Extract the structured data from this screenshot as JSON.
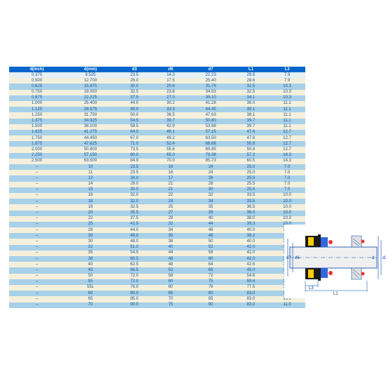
{
  "table": {
    "headers": [
      "d(inch)",
      "d(mm)",
      "d3",
      "d6",
      "d7",
      "L1",
      "L3"
    ],
    "header_bg": "#0066cc",
    "header_fg": "#ffffff",
    "row_colors": {
      "light": "#e6f0f7",
      "cream": "#f5f0dc",
      "blue": "#a8d0e8"
    },
    "text_color": "#1a5490",
    "rows": [
      {
        "c": "light",
        "v": [
          "0.375",
          "9.525",
          "23.5",
          "14.3",
          "22.23",
          "28.8",
          "7.9"
        ]
      },
      {
        "c": "cream",
        "v": [
          "0.500",
          "12.700",
          "26.0",
          "17.5",
          "25.40",
          "28.6",
          "7.9"
        ]
      },
      {
        "c": "blue",
        "v": [
          "0.625",
          "15.875",
          "30.0",
          "20.6",
          "31.75",
          "32.5",
          "10.3"
        ]
      },
      {
        "c": "cream",
        "v": [
          "0.750",
          "19.050",
          "32.5",
          "23.8",
          "34.93",
          "32.5",
          "10.3"
        ]
      },
      {
        "c": "blue",
        "v": [
          "0.875",
          "22.225",
          "37.5",
          "27.0",
          "38.10",
          "34.1",
          "10.3"
        ]
      },
      {
        "c": "cream",
        "v": [
          "1.000",
          "25.400",
          "44.0",
          "30.2",
          "41.28",
          "36.0",
          "11.1"
        ]
      },
      {
        "c": "blue",
        "v": [
          "1.125",
          "28.575",
          "48.0",
          "33.3",
          "44.45",
          "38.1",
          "11.1"
        ]
      },
      {
        "c": "cream",
        "v": [
          "1.250",
          "31.750",
          "50.0",
          "36.5",
          "47.63",
          "38.1",
          "11.1"
        ]
      },
      {
        "c": "blue",
        "v": [
          "1.375",
          "34.925",
          "54.5",
          "39.7",
          "50.80",
          "39.7",
          "11.1"
        ]
      },
      {
        "c": "cream",
        "v": [
          "1.500",
          "38.100",
          "58.5",
          "42.9",
          "53.98",
          "39.7",
          "11.1"
        ]
      },
      {
        "c": "blue",
        "v": [
          "1.625",
          "41.275",
          "64.0",
          "46.1",
          "57.15",
          "47.6",
          "12.7"
        ]
      },
      {
        "c": "cream",
        "v": [
          "1.750",
          "44.450",
          "67.0",
          "49.2",
          "63.50",
          "47.6",
          "12.7"
        ]
      },
      {
        "c": "blue",
        "v": [
          "1.875",
          "47.625",
          "71.0",
          "52.4",
          "66.68",
          "50.8",
          "12.7"
        ]
      },
      {
        "c": "cream",
        "v": [
          "2.000",
          "50.800",
          "73.5",
          "55.6",
          "69.85",
          "50.8",
          "12.7"
        ]
      },
      {
        "c": "blue",
        "v": [
          "2.250",
          "57.150",
          "80.0",
          "65.0",
          "79.38",
          "57.2",
          "14.3"
        ]
      },
      {
        "c": "cream",
        "v": [
          "2.500",
          "63.500",
          "84.9",
          "70.0",
          "85.73",
          "60.5",
          "14.3"
        ]
      },
      {
        "c": "blue",
        "v": [
          "–",
          "10",
          "23.5",
          "16",
          "24",
          "25.0",
          "7.0"
        ]
      },
      {
        "c": "cream",
        "v": [
          "–",
          "11",
          "23.5",
          "16",
          "24",
          "25.0",
          "7.0"
        ]
      },
      {
        "c": "blue",
        "v": [
          "–",
          "12",
          "26.0",
          "17",
          "26",
          "25.0",
          "7.0"
        ]
      },
      {
        "c": "cream",
        "v": [
          "–",
          "14",
          "28.0",
          "21",
          "28",
          "25.5",
          "7.0"
        ]
      },
      {
        "c": "blue",
        "v": [
          "–",
          "15",
          "30.0",
          "21",
          "30",
          "25.5",
          "7.0"
        ]
      },
      {
        "c": "cream",
        "v": [
          "–",
          "16",
          "32.0",
          "22",
          "32",
          "33.5",
          "10.0"
        ]
      },
      {
        "c": "blue",
        "v": [
          "–",
          "18",
          "32.0",
          "24",
          "34",
          "33.5",
          "10.0"
        ]
      },
      {
        "c": "cream",
        "v": [
          "–",
          "19",
          "32.5",
          "25",
          "35",
          "36.5",
          "10.0"
        ]
      },
      {
        "c": "blue",
        "v": [
          "–",
          "20",
          "35.5",
          "27",
          "38",
          "38.0",
          "10.0"
        ]
      },
      {
        "c": "cream",
        "v": [
          "–",
          "22",
          "37.5",
          "29",
          "40",
          "38.0",
          "10.0"
        ]
      },
      {
        "c": "blue",
        "v": [
          "–",
          "25",
          "42.5",
          "32",
          "44",
          "39.3",
          "10.0"
        ]
      },
      {
        "c": "cream",
        "v": [
          "–",
          "28",
          "44.0",
          "34",
          "46",
          "40.0",
          "10.0"
        ]
      },
      {
        "c": "blue",
        "v": [
          "–",
          "30",
          "46.0",
          "35",
          "48",
          "38.2",
          "7.5"
        ]
      },
      {
        "c": "cream",
        "v": [
          "–",
          "30",
          "48.0",
          "38",
          "50",
          "40.0",
          "10.0"
        ]
      },
      {
        "c": "blue",
        "v": [
          "–",
          "32",
          "51.0",
          "40",
          "52",
          "42.0",
          "10.0"
        ]
      },
      {
        "c": "cream",
        "v": [
          "–",
          "35",
          "54.5",
          "44",
          "58",
          "42.0",
          "10.0"
        ]
      },
      {
        "c": "blue",
        "v": [
          "–",
          "38",
          "60.5",
          "48",
          "60",
          "42.0",
          "10.0"
        ]
      },
      {
        "c": "cream",
        "v": [
          "–",
          "40",
          "62.5",
          "48",
          "64",
          "42.6",
          "10.0"
        ]
      },
      {
        "c": "blue",
        "v": [
          "–",
          "45",
          "66.5",
          "52",
          "66",
          "45.0",
          "10.0"
        ]
      },
      {
        "c": "cream",
        "v": [
          "–",
          "50",
          "72.0",
          "58",
          "72",
          "54.6",
          "11.5"
        ]
      },
      {
        "c": "blue",
        "v": [
          "–",
          "55",
          "72.0",
          "60",
          "75",
          "59.4",
          "12.0"
        ]
      },
      {
        "c": "cream",
        "v": [
          "–",
          "55L",
          "76.0",
          "60",
          "78",
          "77.5",
          "12.0"
        ]
      },
      {
        "c": "blue",
        "v": [
          "–",
          "60",
          "80.0",
          "65",
          "80",
          "83.0",
          "12.0"
        ]
      },
      {
        "c": "cream",
        "v": [
          "–",
          "65",
          "85.0",
          "70",
          "85",
          "83.0",
          "13.0"
        ]
      },
      {
        "c": "blue",
        "v": [
          "–",
          "70",
          "90.0",
          "75",
          "90",
          "83.0",
          "11.0"
        ]
      }
    ]
  },
  "diagram": {
    "labels": {
      "d7": "d7",
      "d6": "d6",
      "d3": "d3",
      "L3": "L3",
      "L1": "L1",
      "d": "d"
    },
    "colors": {
      "shaft": "#f0f0f0",
      "outline": "#0044aa",
      "black": "#1a1a1a",
      "yellow": "#ffcc00",
      "blue": "#3366dd",
      "red": "#ee3333",
      "dim": "#0044aa"
    }
  }
}
